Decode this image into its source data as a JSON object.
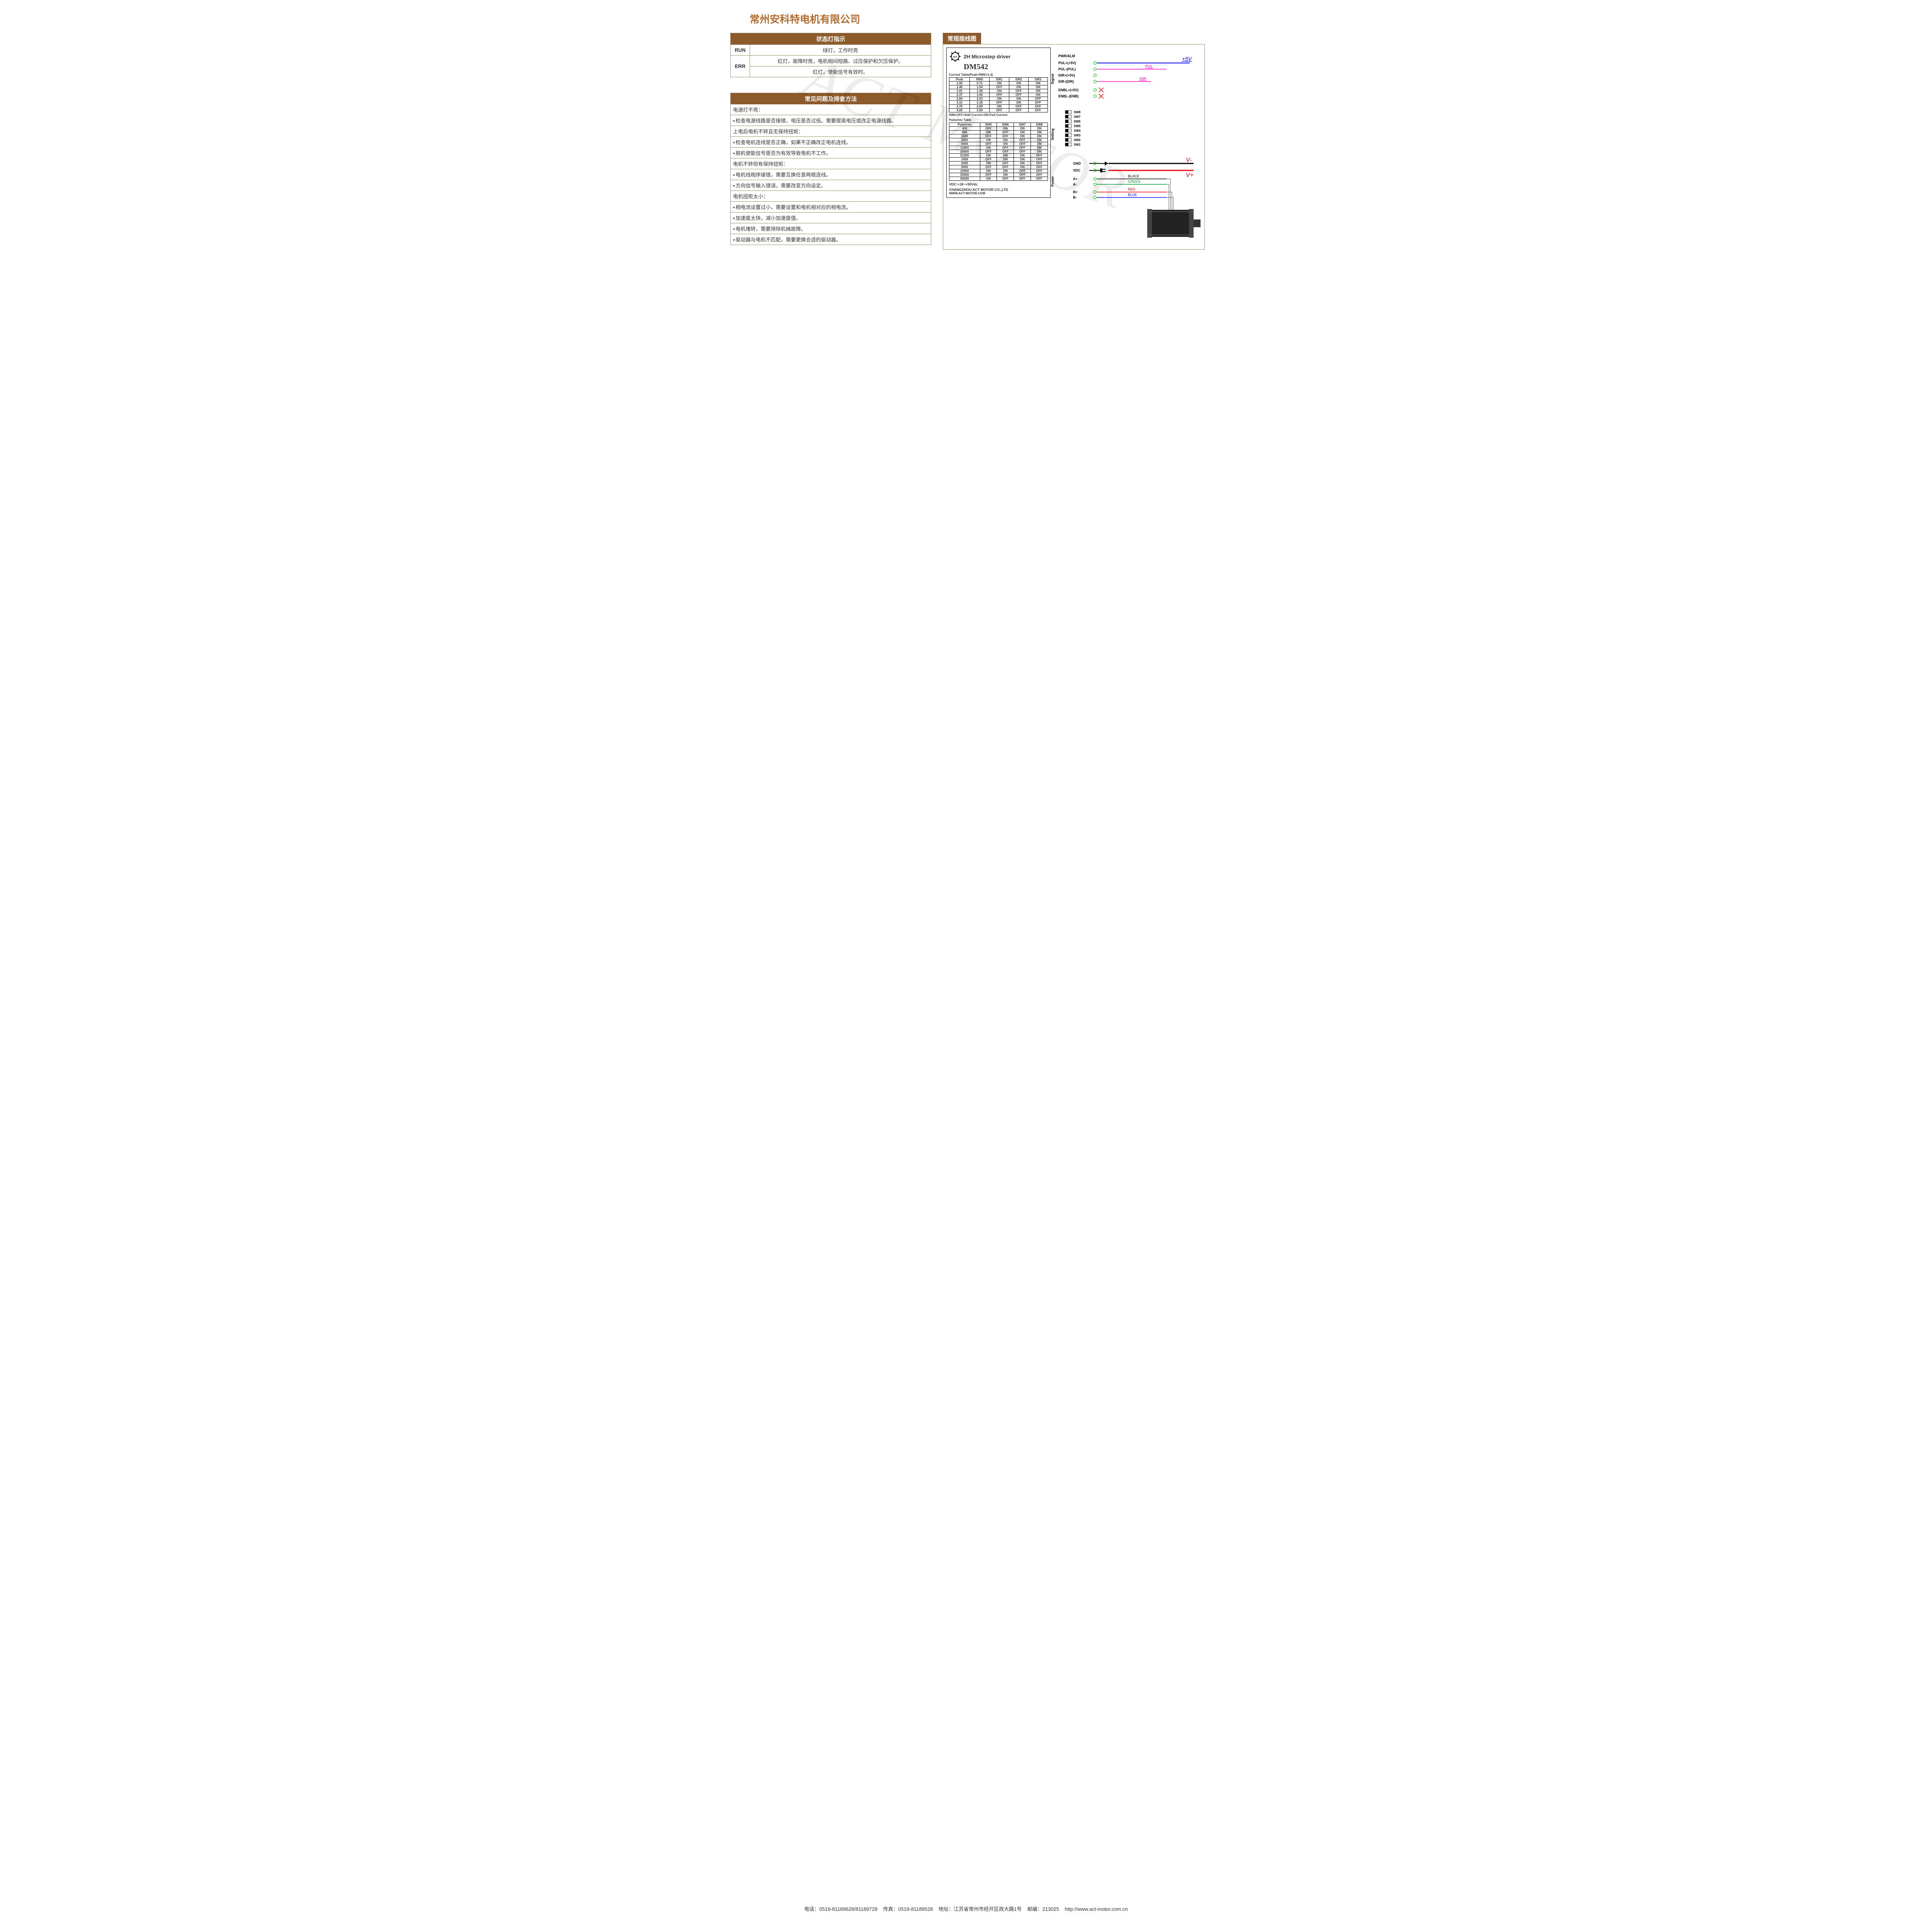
{
  "colors": {
    "accent": "#8c5a2b",
    "header_bg": "#8c5a2b",
    "border": "#a58a6a",
    "title_color": "#b36b2e",
    "black": "#000000",
    "red": "#e60000",
    "green": "#009933",
    "blue": "#0000ff",
    "magenta": "#ff00cc",
    "lime": "#33cc33"
  },
  "company": "常州安科特电机有限公司",
  "led_table": {
    "header": "状态灯指示",
    "rows": [
      {
        "label": "RUN",
        "cells": [
          "绿灯，工作时亮"
        ]
      },
      {
        "label": "ERR",
        "cells": [
          "红灯，故障时亮，电机相间短路、过压保护和欠压保护。",
          "红灯，使能信号有效时。"
        ]
      }
    ]
  },
  "faq": {
    "header": "常见问题及排查方法",
    "items": [
      {
        "q": "电源灯不亮：",
        "a": [
          "检查电源线路是否接错，电压是否过低。需要提高电压或改正电源线路。"
        ]
      },
      {
        "q": "上电后电机不转且无保持扭矩：",
        "a": [
          "检查电机连线是否正确，如果不正确改正电机连线。",
          "脱机使能信号是否为有效导致电机不工作。"
        ]
      },
      {
        "q": "电机不转但有保持扭矩：",
        "a": [
          "电机线相序接错，需要互换任意两根连线。",
          "方向信号输入错误，需要改变方向设定。"
        ]
      },
      {
        "q": "电机扭矩太小：",
        "a": [
          "相电流设置过小，需要设置和电机相对应的相电流。",
          "加速度太快，减小加速度值。",
          "电机堵转，需要排除机械故障。",
          "驱动器与电机不匹配，需要更换合适的驱动器。"
        ]
      }
    ]
  },
  "wiring": {
    "header": "常规接线图",
    "driver_label": {
      "brand": "ACT MOTOR",
      "title": "2H Microstep driver",
      "model": "DM542",
      "current_table_caption": "Current Table(Peak=RMS×1.4)",
      "current_table": {
        "head": [
          "Peak",
          "RMS",
          "SW1",
          "SW2",
          "SW3"
        ],
        "rows": [
          [
            "1.00",
            "0.71",
            "ON",
            "ON",
            "ON"
          ],
          [
            "1.46",
            "1.04",
            "OFF",
            "ON",
            "ON"
          ],
          [
            "1.91",
            "1.36",
            "ON",
            "OFF",
            "ON"
          ],
          [
            "2.37",
            "1.69",
            "OFF",
            "OFF",
            "ON"
          ],
          [
            "2.84",
            "2.03",
            "ON",
            "ON",
            "OFF"
          ],
          [
            "3.31",
            "2.36",
            "OFF",
            "ON",
            "OFF"
          ],
          [
            "3.76",
            "2.69",
            "ON",
            "OFF",
            "OFF"
          ],
          [
            "4.20",
            "3.00",
            "OFF",
            "OFF",
            "OFF"
          ]
        ]
      },
      "half_current_note": "SW4:OFF=Half Current ON=Full Current",
      "pulse_table_caption": "Pulse/rev Table",
      "pulse_table": {
        "head": [
          "Pulse/rev",
          "SW5",
          "SW6",
          "SW7",
          "SW8"
        ],
        "rows": [
          [
            "400",
            "OFF",
            "ON",
            "ON",
            "ON"
          ],
          [
            "800",
            "ON",
            "OFF",
            "ON",
            "ON"
          ],
          [
            "1600",
            "OFF",
            "OFF",
            "ON",
            "ON"
          ],
          [
            "3200",
            "ON",
            "ON",
            "OFF",
            "ON"
          ],
          [
            "6400",
            "OFF",
            "ON",
            "OFF",
            "ON"
          ],
          [
            "12800",
            "ON",
            "OFF",
            "OFF",
            "ON"
          ],
          [
            "25600",
            "OFF",
            "OFF",
            "OFF",
            "ON"
          ],
          [
            "51200",
            "ON",
            "ON",
            "ON",
            "OFF"
          ],
          [
            "1000",
            "OFF",
            "ON",
            "ON",
            "OFF"
          ],
          [
            "2000",
            "ON",
            "OFF",
            "ON",
            "OFF"
          ],
          [
            "5000",
            "OFF",
            "OFF",
            "ON",
            "OFF"
          ],
          [
            "10000",
            "ON",
            "ON",
            "OFF",
            "OFF"
          ],
          [
            "25000",
            "OFF",
            "ON",
            "OFF",
            "OFF"
          ],
          [
            "50000",
            "ON",
            "OFF",
            "OFF",
            "OFF"
          ]
        ]
      },
      "vdc": "VDC:+18~+50Vdc",
      "mfr": "CHANGZHOU ACT MOTOR CO.,LTD",
      "url": "WWW.ACT-MOTOR.COM"
    },
    "signal_side_label": "Signal",
    "setting_side_label": "Setting",
    "power_side_label": "Power",
    "signal_terminals": [
      "PWR/ALM",
      "PUL+(+5V)",
      "PUL-(PUL)",
      "DIR+(+5V)",
      "DIR-(DIR)",
      "ENBL+(+5V)",
      "ENBL-(ENB)"
    ],
    "sw_labels": [
      "SW8",
      "SW7",
      "SW6",
      "SW5",
      "SW4",
      "SW3",
      "SW2",
      "SW1"
    ],
    "power_terminals": [
      "GND",
      "VDC",
      "A+",
      "A-",
      "B+",
      "B-"
    ],
    "ext_labels": {
      "five_v": "+5V",
      "pul": "PUL",
      "dir": "DIR",
      "v_minus": "V-",
      "v_plus": "V+",
      "black": "BLACK",
      "green": "GREEN",
      "red": "RED",
      "blue": "BLUE"
    }
  },
  "footer": {
    "phone_label": "电话：",
    "phone": "0519-81189628/81189728",
    "fax_label": "传真：",
    "fax": "0519-81189528",
    "addr_label": "地址：",
    "addr": "江苏省常州市经开区政大路1号",
    "zip_label": "邮编：",
    "zip": "213025",
    "url": "http://www.act-motor.com.cn"
  },
  "watermark": "ACT MOTOR"
}
